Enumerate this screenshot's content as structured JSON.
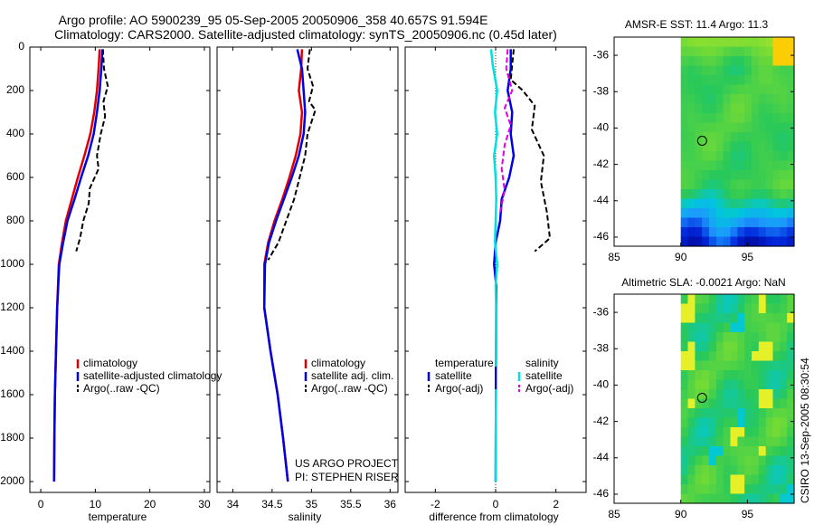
{
  "header": {
    "title_line1": "Argo profile: AO 5900239_95 05-Sep-2005 20050906_358 40.657S 91.594E",
    "title_line2": "Climatology: CARS2000. Satellite-adjusted climatology: synTS_20050906.nc (0.45d later)"
  },
  "colors": {
    "red": "#e00000",
    "blue": "#0000e6",
    "black": "#000000",
    "magenta": "#e000e0",
    "cyan": "#00e0e0"
  },
  "chart_data": [
    {
      "type": "line",
      "id": "temperature",
      "xlabel": "temperature",
      "xlim": [
        -2,
        31
      ],
      "ylim": [
        2050,
        0
      ],
      "xticks": [
        0,
        10,
        20,
        30
      ],
      "yticks": [
        0,
        200,
        400,
        600,
        800,
        1000,
        1200,
        1400,
        1600,
        1800,
        2000
      ],
      "legend": [
        "climatology",
        "satellite-adjusted climatology",
        "Argo(..raw -QC)"
      ],
      "series": [
        {
          "name": "climatology",
          "color": "red",
          "dash": false,
          "x": [
            10.8,
            10.6,
            10.3,
            9.8,
            9.1,
            8.0,
            6.8,
            5.7,
            4.6,
            3.9,
            3.3,
            3.0,
            2.8,
            2.6,
            2.5,
            2.45
          ],
          "y": [
            10,
            100,
            200,
            300,
            400,
            500,
            600,
            700,
            800,
            900,
            1000,
            1200,
            1400,
            1600,
            1800,
            2000
          ]
        },
        {
          "name": "satellite-adjusted climatology",
          "color": "blue",
          "dash": false,
          "x": [
            11.3,
            11.1,
            10.8,
            10.3,
            9.7,
            8.7,
            7.4,
            6.2,
            4.9,
            4.1,
            3.4,
            3.0,
            2.8,
            2.6,
            2.5,
            2.45
          ],
          "y": [
            10,
            100,
            200,
            300,
            400,
            500,
            600,
            700,
            800,
            900,
            1000,
            1200,
            1400,
            1600,
            1800,
            2000
          ]
        },
        {
          "name": "Argo(..raw -QC)",
          "color": "black",
          "dash": true,
          "x": [
            11.4,
            11.6,
            12.3,
            11.5,
            11.8,
            11.0,
            10.3,
            10.6,
            9.0,
            8.8,
            7.8,
            7.2,
            6.5
          ],
          "y": [
            10,
            100,
            180,
            250,
            320,
            400,
            500,
            560,
            650,
            720,
            800,
            880,
            940
          ]
        }
      ]
    },
    {
      "type": "line",
      "id": "salinity",
      "xlabel": "salinity",
      "xlim": [
        33.8,
        36.1
      ],
      "ylim": [
        2050,
        0
      ],
      "xticks": [
        34,
        34.5,
        35,
        35.5,
        36
      ],
      "legend": [
        "climatology",
        "satellite adj. clim.",
        "Argo(..raw -QC)"
      ],
      "series": [
        {
          "name": "climatology",
          "color": "red",
          "dash": false,
          "x": [
            34.88,
            34.87,
            34.84,
            34.88,
            34.86,
            34.8,
            34.72,
            34.63,
            34.53,
            34.45,
            34.4,
            34.4,
            34.48,
            34.57,
            34.64,
            34.7
          ],
          "y": [
            10,
            100,
            200,
            300,
            400,
            500,
            600,
            700,
            800,
            900,
            1000,
            1200,
            1400,
            1600,
            1800,
            2000
          ]
        },
        {
          "name": "satellite adj. clim.",
          "color": "blue",
          "dash": false,
          "x": [
            34.82,
            34.88,
            34.9,
            34.92,
            34.9,
            34.84,
            34.75,
            34.65,
            34.55,
            34.46,
            34.41,
            34.4,
            34.48,
            34.57,
            34.64,
            34.7
          ],
          "y": [
            10,
            100,
            200,
            300,
            400,
            500,
            600,
            700,
            800,
            900,
            1000,
            1200,
            1400,
            1600,
            1800,
            2000
          ]
        },
        {
          "name": "Argo(..raw -QC)",
          "color": "black",
          "dash": true,
          "x": [
            34.98,
            34.95,
            35.02,
            34.97,
            35.05,
            34.95,
            34.92,
            34.85,
            34.78,
            34.68,
            34.58,
            34.45
          ],
          "y": [
            10,
            100,
            180,
            250,
            290,
            400,
            500,
            600,
            700,
            800,
            900,
            980
          ]
        }
      ],
      "annotation": [
        "US ARGO PROJECT",
        "PI: STEPHEN RISER"
      ]
    },
    {
      "type": "line",
      "id": "difference",
      "xlabel": "difference from climatology",
      "xlim": [
        -3,
        3
      ],
      "ylim": [
        2050,
        0
      ],
      "xticks": [
        -2,
        0,
        2
      ],
      "legend_groups": [
        {
          "title": "temperature",
          "items": [
            "satellite",
            "Argo(-adj)"
          ]
        },
        {
          "title": "salinity",
          "items": [
            "satellite",
            "Argo(-adj)"
          ]
        }
      ],
      "series": [
        {
          "name": "temperature satellite",
          "color": "blue",
          "dash": false,
          "x": [
            0.5,
            0.5,
            0.4,
            0.55,
            0.5,
            0.6,
            0.45,
            0.2,
            0.15,
            0.0,
            -0.05,
            0.02,
            0.0
          ],
          "y": [
            10,
            100,
            200,
            300,
            400,
            500,
            600,
            700,
            800,
            900,
            1000,
            1100,
            2000
          ]
        },
        {
          "name": "temperature Argo(-adj)",
          "color": "black",
          "dash": true,
          "x": [
            0.6,
            0.5,
            0.9,
            1.3,
            1.2,
            1.6,
            1.5,
            1.7,
            1.8,
            1.3
          ],
          "y": [
            10,
            150,
            200,
            270,
            380,
            500,
            620,
            760,
            880,
            940
          ]
        },
        {
          "name": "salinity satellite",
          "color": "cyan",
          "dash": false,
          "x": [
            -0.15,
            -0.1,
            0.05,
            -0.02,
            0.05,
            -0.05,
            0.0,
            0.02,
            0.0,
            -0.02,
            0.05,
            0.0,
            0.02,
            0.0
          ],
          "y": [
            10,
            80,
            200,
            300,
            400,
            500,
            600,
            700,
            800,
            900,
            1000,
            1100,
            1200,
            2000
          ]
        },
        {
          "name": "salinity Argo(-adj)",
          "color": "magenta",
          "dash": true,
          "x": [
            0.4,
            0.35,
            0.55,
            0.3,
            0.5,
            0.3,
            0.2,
            0.3,
            0.15
          ],
          "y": [
            10,
            100,
            200,
            280,
            360,
            450,
            560,
            660,
            760
          ]
        }
      ]
    },
    {
      "type": "heatmap",
      "id": "sst-map",
      "title": "AMSR-E SST: 11.4 Argo: 11.3",
      "xlim": [
        85,
        98.5
      ],
      "ylim": [
        -46.5,
        -35
      ],
      "xticks": [
        85,
        90,
        95
      ],
      "yticks": [
        -36,
        -38,
        -40,
        -42,
        -44,
        -46
      ],
      "marker": {
        "lon": 91.6,
        "lat": -40.7
      },
      "data_lon_range": [
        90,
        98.5
      ]
    },
    {
      "type": "heatmap",
      "id": "sla-map",
      "title": "Altimetric SLA: -0.0021 Argo: NaN",
      "xlim": [
        85,
        98.5
      ],
      "ylim": [
        -46.5,
        -35
      ],
      "xticks": [
        85,
        90,
        95
      ],
      "yticks": [
        -36,
        -38,
        -40,
        -42,
        -44,
        -46
      ],
      "marker": {
        "lon": 91.6,
        "lat": -40.7
      },
      "data_lon_range": [
        90,
        98.5
      ]
    }
  ],
  "footer": {
    "stamp": "CSIRO 13-Sep-2005 08:30:54"
  }
}
